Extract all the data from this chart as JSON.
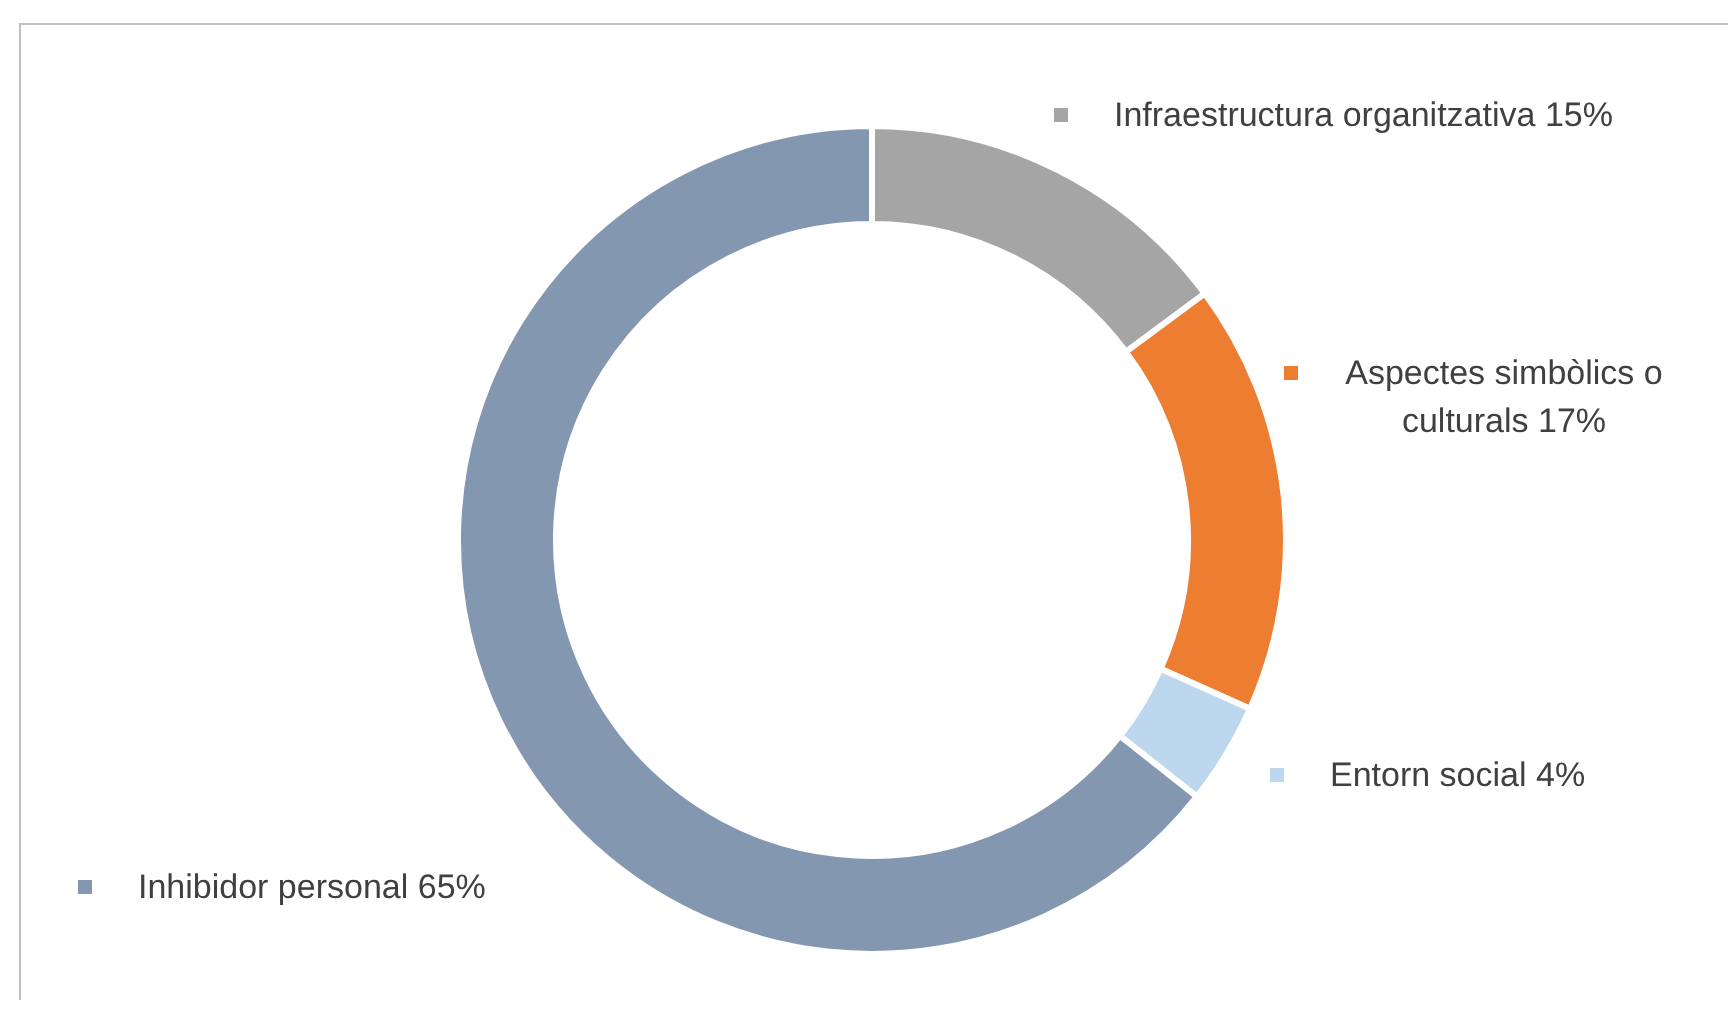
{
  "chart_data": {
    "type": "donut",
    "categories": [
      "Infraestructura organitzativa 15%",
      "Aspectes simbòlics o culturals 17%",
      "Entorn social 4%",
      "Inhibidor personal 65%"
    ],
    "values": [
      15,
      17,
      4,
      65
    ],
    "colors": [
      "#a5a5a5",
      "#ed7d31",
      "#bdd7ee",
      "#8497b0"
    ],
    "legend": "right"
  }
}
